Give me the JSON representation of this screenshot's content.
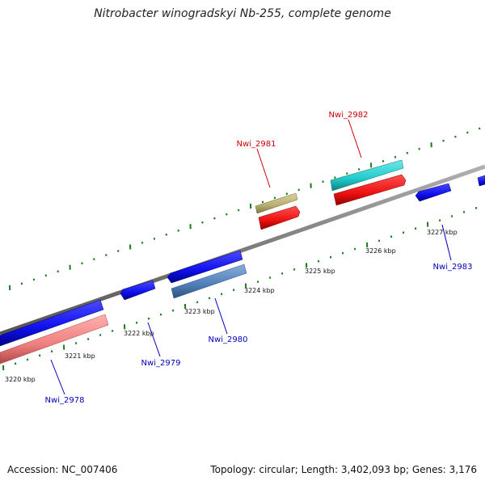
{
  "title": "Nitrobacter winogradskyi Nb-255, complete genome",
  "footer": {
    "accession": "Accession: NC_007406",
    "summary": "Topology: circular; Length: 3,402,093 bp; Genes: 3,176"
  },
  "colors": {
    "backbone": "#8a8a8a",
    "tick": "#1a7a1a",
    "label_forward": "#cc0000",
    "label_reverse": "#0000bb",
    "gene_blue": "#1010ee",
    "gene_red": "#ee1111",
    "gene_cyan": "#22cccc",
    "gene_olive": "#b8b070",
    "gene_pink": "#f08080",
    "gene_steel": "#4f7fb8"
  },
  "scale_labels": [
    "3220 kbp",
    "3221 kbp",
    "3222 kbp",
    "3223 kbp",
    "3224 kbp",
    "3225 kbp",
    "3226 kbp",
    "3227 kbp"
  ],
  "gene_labels": {
    "nwi_2978": "Nwi_2978",
    "nwi_2979": "Nwi_2979",
    "nwi_2980": "Nwi_2980",
    "nwi_2981": "Nwi_2981",
    "nwi_2982": "Nwi_2982",
    "nwi_2983": "Nwi_2983"
  }
}
